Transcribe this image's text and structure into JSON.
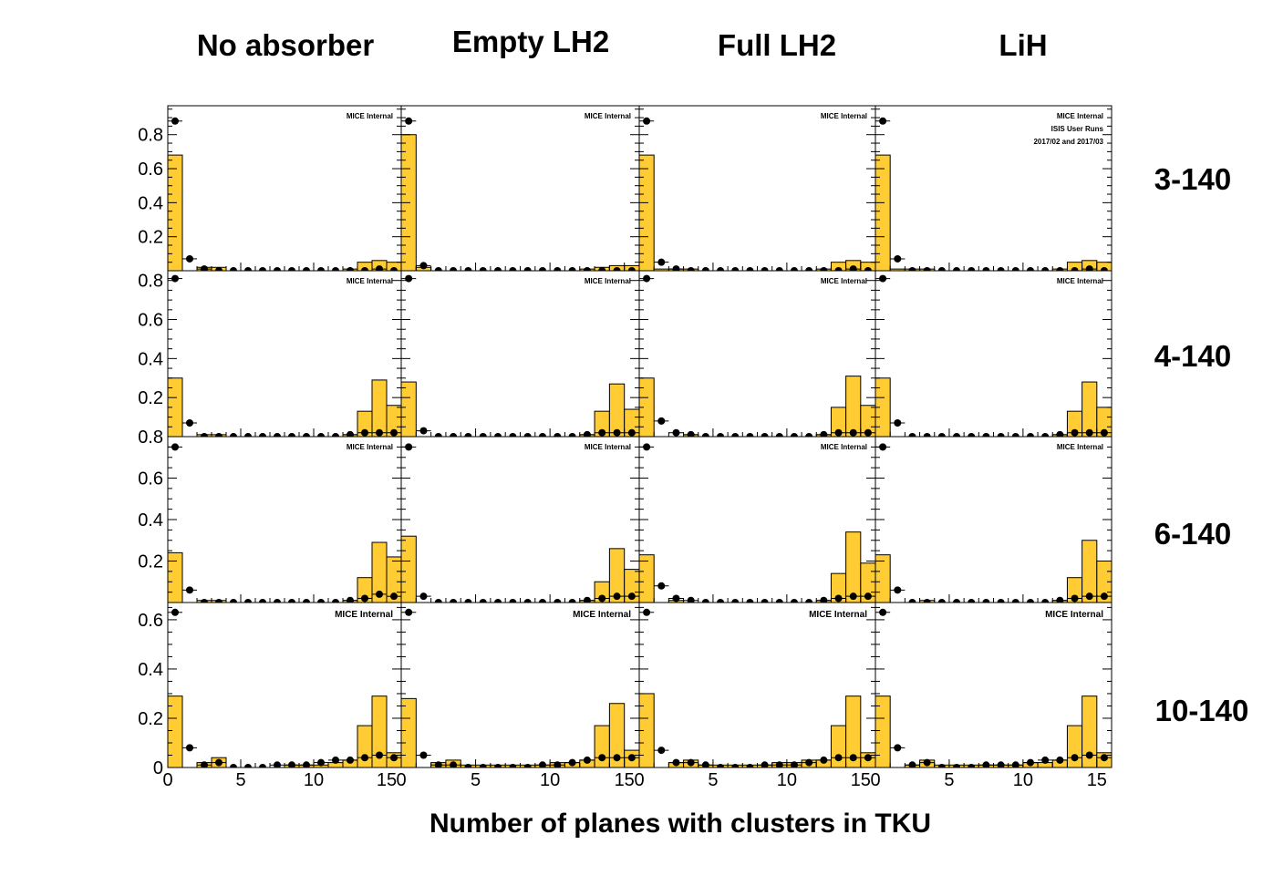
{
  "figure": {
    "column_titles": [
      "No absorber",
      "Empty LH2",
      "Full LH2",
      "LiH"
    ],
    "row_labels": [
      "3-140",
      "4-140",
      "6-140",
      "10-140"
    ],
    "x_axis_title": "Number of planes with clusters in TKU",
    "watermark": "MICE Internal",
    "watermark_extra": [
      "ISIS User Runs",
      "2017/02 and 2017/03"
    ]
  },
  "chart_data": {
    "type": "bar",
    "layout": "4x4 grid of histograms with overlaid data points",
    "x_bins": [
      0,
      1,
      2,
      3,
      4,
      5,
      6,
      7,
      8,
      9,
      10,
      11,
      12,
      13,
      14,
      15
    ],
    "xlim": [
      0,
      16
    ],
    "x_ticks": [
      0,
      5,
      10,
      15
    ],
    "fill_color": "#ffcc33",
    "marker_color": "#000000",
    "rows": [
      {
        "label": "3-140",
        "ylim": [
          0,
          0.97
        ],
        "y_ticks": [
          0.2,
          0.4,
          0.6,
          0.8
        ],
        "y_tick_labels": [
          "0.2",
          "0.4",
          "0.6",
          "0.8"
        ],
        "panels": [
          {
            "column": "No absorber",
            "hist": [
              0.68,
              0.0,
              0.02,
              0.02,
              0.0,
              0.0,
              0.0,
              0.0,
              0.0,
              0.0,
              0.0,
              0.0,
              0.01,
              0.05,
              0.06,
              0.05
            ],
            "points": [
              0.88,
              0.07,
              0.01,
              0.0,
              0.0,
              0.0,
              0.0,
              0.0,
              0.0,
              0.0,
              0.0,
              0.0,
              0.0,
              0.0,
              0.01,
              0.0
            ]
          },
          {
            "column": "Empty LH2",
            "hist": [
              0.8,
              0.02,
              0.0,
              0.0,
              0.0,
              0.0,
              0.0,
              0.0,
              0.0,
              0.0,
              0.0,
              0.0,
              0.01,
              0.02,
              0.03,
              0.03
            ],
            "points": [
              0.88,
              0.03,
              0.0,
              0.0,
              0.0,
              0.0,
              0.0,
              0.0,
              0.0,
              0.0,
              0.0,
              0.0,
              0.0,
              0.0,
              0.0,
              0.0
            ]
          },
          {
            "column": "Full LH2",
            "hist": [
              0.68,
              0.01,
              0.01,
              0.01,
              0.0,
              0.0,
              0.0,
              0.0,
              0.0,
              0.0,
              0.0,
              0.0,
              0.01,
              0.05,
              0.06,
              0.05
            ],
            "points": [
              0.88,
              0.05,
              0.01,
              0.0,
              0.0,
              0.0,
              0.0,
              0.0,
              0.0,
              0.0,
              0.0,
              0.0,
              0.0,
              0.0,
              0.01,
              0.0
            ]
          },
          {
            "column": "LiH",
            "hist": [
              0.68,
              0.01,
              0.01,
              0.01,
              0.0,
              0.0,
              0.0,
              0.0,
              0.0,
              0.0,
              0.0,
              0.0,
              0.01,
              0.05,
              0.06,
              0.05
            ],
            "points": [
              0.88,
              0.07,
              0.0,
              0.0,
              0.0,
              0.0,
              0.0,
              0.0,
              0.0,
              0.0,
              0.0,
              0.0,
              0.0,
              0.0,
              0.01,
              0.0
            ]
          }
        ]
      },
      {
        "label": "4-140",
        "ylim": [
          0,
          0.85
        ],
        "y_ticks": [
          0.2,
          0.4,
          0.6,
          0.8
        ],
        "y_tick_labels": [
          "0.2",
          "0.4",
          "0.6",
          "0.8"
        ],
        "panels": [
          {
            "column": "No absorber",
            "hist": [
              0.3,
              0.0,
              0.01,
              0.01,
              0.0,
              0.0,
              0.0,
              0.0,
              0.0,
              0.0,
              0.0,
              0.0,
              0.01,
              0.13,
              0.29,
              0.16
            ],
            "points": [
              0.81,
              0.07,
              0.0,
              0.0,
              0.0,
              0.0,
              0.0,
              0.0,
              0.0,
              0.0,
              0.0,
              0.0,
              0.01,
              0.02,
              0.02,
              0.02
            ]
          },
          {
            "column": "Empty LH2",
            "hist": [
              0.28,
              0.0,
              0.0,
              0.0,
              0.0,
              0.0,
              0.0,
              0.0,
              0.0,
              0.0,
              0.0,
              0.0,
              0.01,
              0.13,
              0.27,
              0.14
            ],
            "points": [
              0.81,
              0.03,
              0.0,
              0.0,
              0.0,
              0.0,
              0.0,
              0.0,
              0.0,
              0.0,
              0.0,
              0.0,
              0.01,
              0.02,
              0.02,
              0.02
            ]
          },
          {
            "column": "Full LH2",
            "hist": [
              0.3,
              0.0,
              0.0,
              0.01,
              0.0,
              0.0,
              0.0,
              0.0,
              0.0,
              0.0,
              0.0,
              0.0,
              0.01,
              0.15,
              0.31,
              0.16
            ],
            "points": [
              0.81,
              0.08,
              0.02,
              0.01,
              0.0,
              0.0,
              0.0,
              0.0,
              0.0,
              0.0,
              0.0,
              0.0,
              0.01,
              0.02,
              0.02,
              0.02
            ]
          },
          {
            "column": "LiH",
            "hist": [
              0.3,
              0.0,
              0.0,
              0.0,
              0.0,
              0.0,
              0.0,
              0.0,
              0.0,
              0.0,
              0.0,
              0.0,
              0.01,
              0.13,
              0.28,
              0.15
            ],
            "points": [
              0.81,
              0.07,
              0.0,
              0.0,
              0.0,
              0.0,
              0.0,
              0.0,
              0.0,
              0.0,
              0.0,
              0.0,
              0.01,
              0.02,
              0.02,
              0.02
            ]
          }
        ]
      },
      {
        "label": "6-140",
        "ylim": [
          0,
          0.8
        ],
        "y_ticks": [
          0.2,
          0.4,
          0.6,
          0.8
        ],
        "y_tick_labels": [
          "0.2",
          "0.4",
          "0.6",
          "0.8"
        ],
        "panels": [
          {
            "column": "No absorber",
            "hist": [
              0.24,
              0.0,
              0.01,
              0.01,
              0.0,
              0.0,
              0.0,
              0.0,
              0.0,
              0.0,
              0.0,
              0.0,
              0.01,
              0.12,
              0.29,
              0.22
            ],
            "points": [
              0.75,
              0.06,
              0.0,
              0.0,
              0.0,
              0.0,
              0.0,
              0.0,
              0.0,
              0.0,
              0.0,
              0.0,
              0.01,
              0.02,
              0.04,
              0.03
            ]
          },
          {
            "column": "Empty LH2",
            "hist": [
              0.32,
              0.0,
              0.0,
              0.0,
              0.0,
              0.0,
              0.0,
              0.0,
              0.0,
              0.0,
              0.0,
              0.0,
              0.01,
              0.1,
              0.26,
              0.16
            ],
            "points": [
              0.75,
              0.03,
              0.0,
              0.0,
              0.0,
              0.0,
              0.0,
              0.0,
              0.0,
              0.0,
              0.0,
              0.0,
              0.01,
              0.02,
              0.03,
              0.03
            ]
          },
          {
            "column": "Full LH2",
            "hist": [
              0.23,
              0.0,
              0.01,
              0.0,
              0.0,
              0.0,
              0.0,
              0.0,
              0.0,
              0.0,
              0.0,
              0.0,
              0.01,
              0.14,
              0.34,
              0.19
            ],
            "points": [
              0.75,
              0.08,
              0.02,
              0.01,
              0.0,
              0.0,
              0.0,
              0.0,
              0.0,
              0.0,
              0.0,
              0.0,
              0.01,
              0.02,
              0.03,
              0.03
            ]
          },
          {
            "column": "LiH",
            "hist": [
              0.23,
              0.0,
              0.0,
              0.01,
              0.0,
              0.0,
              0.0,
              0.0,
              0.0,
              0.0,
              0.0,
              0.0,
              0.01,
              0.12,
              0.3,
              0.2
            ],
            "points": [
              0.75,
              0.06,
              0.0,
              0.0,
              0.0,
              0.0,
              0.0,
              0.0,
              0.0,
              0.0,
              0.0,
              0.0,
              0.01,
              0.02,
              0.03,
              0.03
            ]
          }
        ]
      },
      {
        "label": "10-140",
        "ylim": [
          0,
          0.67
        ],
        "y_ticks": [
          0,
          0.2,
          0.4,
          0.6
        ],
        "y_tick_labels": [
          "0",
          "0.2",
          "0.4",
          "0.6"
        ],
        "panels": [
          {
            "column": "No absorber",
            "hist": [
              0.29,
              0.0,
              0.02,
              0.04,
              0.0,
              0.0,
              0.0,
              0.0,
              0.01,
              0.01,
              0.01,
              0.02,
              0.03,
              0.17,
              0.29,
              0.06
            ],
            "points": [
              0.63,
              0.08,
              0.01,
              0.02,
              0.0,
              0.0,
              0.0,
              0.01,
              0.01,
              0.01,
              0.02,
              0.03,
              0.03,
              0.04,
              0.05,
              0.04
            ]
          },
          {
            "column": "Empty LH2",
            "hist": [
              0.28,
              0.0,
              0.02,
              0.03,
              0.01,
              0.01,
              0.01,
              0.01,
              0.01,
              0.01,
              0.02,
              0.02,
              0.03,
              0.17,
              0.26,
              0.07
            ],
            "points": [
              0.63,
              0.05,
              0.01,
              0.01,
              0.0,
              0.0,
              0.0,
              0.0,
              0.0,
              0.01,
              0.01,
              0.02,
              0.03,
              0.04,
              0.04,
              0.04
            ]
          },
          {
            "column": "Full LH2",
            "hist": [
              0.3,
              0.0,
              0.02,
              0.03,
              0.01,
              0.01,
              0.01,
              0.01,
              0.01,
              0.02,
              0.02,
              0.03,
              0.03,
              0.17,
              0.29,
              0.06
            ],
            "points": [
              0.63,
              0.07,
              0.02,
              0.02,
              0.01,
              0.0,
              0.0,
              0.0,
              0.01,
              0.01,
              0.01,
              0.02,
              0.03,
              0.04,
              0.04,
              0.04
            ]
          },
          {
            "column": "LiH",
            "hist": [
              0.29,
              0.0,
              0.01,
              0.03,
              0.01,
              0.01,
              0.01,
              0.01,
              0.01,
              0.01,
              0.02,
              0.02,
              0.03,
              0.17,
              0.29,
              0.06
            ],
            "points": [
              0.63,
              0.08,
              0.01,
              0.02,
              0.0,
              0.0,
              0.0,
              0.01,
              0.01,
              0.01,
              0.02,
              0.03,
              0.03,
              0.04,
              0.05,
              0.04
            ]
          }
        ]
      }
    ]
  }
}
